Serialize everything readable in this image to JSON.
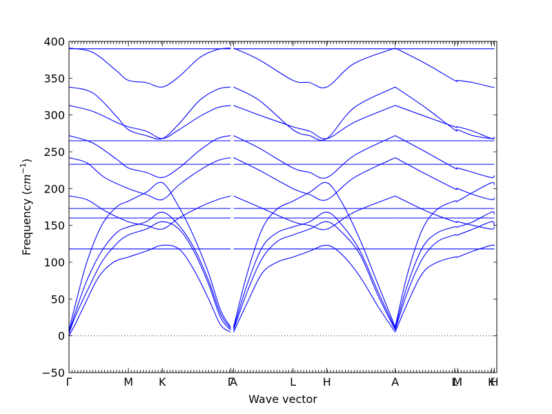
{
  "chart_data": {
    "type": "line",
    "xlabel": "Wave vector",
    "ylabel": "Frequency ($cm^{-1}$)",
    "ylabel_parts": {
      "text": "Frequency (",
      "math": "cm",
      "sup": "−1",
      "close": ")"
    },
    "ylim": [
      -50,
      400
    ],
    "xlim": [
      0,
      7.2
    ],
    "yticks": [
      -50,
      0,
      50,
      100,
      150,
      200,
      250,
      300,
      350,
      400
    ],
    "ytick_labels": [
      "−50",
      "0",
      "50",
      "100",
      "150",
      "200",
      "250",
      "300",
      "350",
      "400"
    ],
    "xticks": [
      {
        "x": 0.0,
        "label": "Γ"
      },
      {
        "x": 1.0,
        "label": "M"
      },
      {
        "x": 1.57,
        "label": "K"
      },
      {
        "x": 2.72,
        "label": "Γ"
      },
      {
        "x": 2.77,
        "label": "A"
      },
      {
        "x": 3.77,
        "label": "L"
      },
      {
        "x": 4.34,
        "label": "H"
      },
      {
        "x": 5.49,
        "label": "A"
      },
      {
        "x": 6.49,
        "label": "L"
      },
      {
        "x": 6.54,
        "label": "M"
      },
      {
        "x": 7.11,
        "label": "K"
      },
      {
        "x": 7.16,
        "label": "H"
      }
    ],
    "zero_line": true,
    "grid": false,
    "color": "#0000ff",
    "series": [
      {
        "x": [
          0,
          0.1,
          0.25,
          0.5,
          0.75,
          1.0,
          1.3,
          1.57,
          1.85,
          2.1,
          2.35,
          2.55,
          2.72
        ],
        "y": [
          0,
          15,
          40,
          80,
          100,
          107,
          115,
          123,
          118,
          90,
          50,
          15,
          5
        ]
      },
      {
        "x": [
          0,
          0.1,
          0.3,
          0.55,
          0.8,
          1.0,
          1.3,
          1.57,
          1.85,
          2.1,
          2.35,
          2.55,
          2.72
        ],
        "y": [
          3,
          25,
          60,
          100,
          125,
          137,
          145,
          155,
          145,
          115,
          70,
          25,
          8
        ]
      },
      {
        "x": [
          0,
          0.1,
          0.3,
          0.55,
          0.8,
          1.0,
          1.3,
          1.57,
          1.85,
          2.1,
          2.35,
          2.55,
          2.72
        ],
        "y": [
          5,
          30,
          75,
          115,
          140,
          148,
          155,
          168,
          150,
          120,
          75,
          30,
          10
        ]
      },
      {
        "x": [
          0,
          0.1,
          0.3,
          0.55,
          0.8,
          1.0,
          1.3,
          1.57,
          1.85,
          2.1,
          2.35,
          2.55,
          2.72
        ],
        "y": [
          8,
          40,
          100,
          150,
          175,
          183,
          195,
          208,
          175,
          135,
          85,
          35,
          12
        ]
      },
      {
        "x": [
          0,
          0.3,
          0.6,
          1.0,
          1.3,
          1.57,
          1.85,
          2.2,
          2.5,
          2.72
        ],
        "y": [
          190,
          185,
          170,
          155,
          150,
          145,
          160,
          175,
          185,
          190
        ]
      },
      {
        "x": [
          0,
          0.3,
          0.6,
          1.0,
          1.3,
          1.57,
          1.85,
          2.2,
          2.5,
          2.72
        ],
        "y": [
          242,
          235,
          215,
          200,
          192,
          185,
          205,
          225,
          238,
          242
        ]
      },
      {
        "x": [
          0,
          0.4,
          0.8,
          1.0,
          1.3,
          1.57,
          1.85,
          2.2,
          2.5,
          2.72
        ],
        "y": [
          272,
          262,
          240,
          228,
          222,
          215,
          228,
          252,
          268,
          272
        ]
      },
      {
        "x": [
          0,
          0.4,
          0.8,
          1.0,
          1.3,
          1.57,
          1.85,
          2.2,
          2.5,
          2.72
        ],
        "y": [
          313,
          305,
          290,
          284,
          278,
          268,
          280,
          298,
          310,
          313
        ]
      },
      {
        "x": [
          0,
          0.4,
          0.8,
          1.0,
          1.3,
          1.57,
          1.85,
          2.2,
          2.5,
          2.72
        ],
        "y": [
          338,
          330,
          298,
          280,
          272,
          268,
          288,
          320,
          335,
          338
        ]
      },
      {
        "x": [
          0,
          0.4,
          0.8,
          1.0,
          1.3,
          1.57,
          1.85,
          2.2,
          2.5,
          2.72
        ],
        "y": [
          391,
          385,
          360,
          347,
          344,
          338,
          352,
          378,
          389,
          391
        ]
      },
      {
        "x": [
          0,
          2.72
        ],
        "y": [
          118,
          118
        ]
      },
      {
        "x": [
          0,
          2.72
        ],
        "y": [
          160,
          160
        ]
      },
      {
        "x": [
          0,
          2.72
        ],
        "y": [
          173,
          173
        ]
      },
      {
        "x": [
          0,
          2.72
        ],
        "y": [
          233,
          233
        ]
      },
      {
        "x": [
          0,
          2.72
        ],
        "y": [
          265,
          265
        ]
      },
      {
        "x": [
          0,
          2.72
        ],
        "y": [
          390,
          390
        ]
      },
      {
        "x": [
          2.77,
          3.0,
          3.25,
          3.5,
          3.77,
          4.05,
          4.34,
          4.6,
          4.9,
          5.2,
          5.49
        ],
        "y": [
          5,
          45,
          85,
          100,
          107,
          115,
          123,
          110,
          80,
          40,
          5
        ]
      },
      {
        "x": [
          2.77,
          3.0,
          3.25,
          3.5,
          3.77,
          4.05,
          4.34,
          4.6,
          4.9,
          5.2,
          5.49
        ],
        "y": [
          8,
          60,
          105,
          128,
          137,
          145,
          155,
          140,
          110,
          55,
          8
        ]
      },
      {
        "x": [
          2.77,
          3.0,
          3.25,
          3.5,
          3.77,
          4.05,
          4.34,
          4.6,
          4.9,
          5.2,
          5.49
        ],
        "y": [
          10,
          70,
          120,
          140,
          148,
          155,
          168,
          150,
          115,
          60,
          10
        ]
      },
      {
        "x": [
          2.77,
          3.0,
          3.25,
          3.5,
          3.77,
          4.05,
          4.34,
          4.6,
          4.9,
          5.2,
          5.49
        ],
        "y": [
          12,
          85,
          145,
          172,
          183,
          195,
          208,
          180,
          130,
          70,
          12
        ]
      },
      {
        "x": [
          2.77,
          3.2,
          3.77,
          4.05,
          4.34,
          4.8,
          5.49
        ],
        "y": [
          190,
          175,
          155,
          150,
          145,
          168,
          190
        ]
      },
      {
        "x": [
          2.77,
          3.2,
          3.77,
          4.05,
          4.34,
          4.8,
          5.49
        ],
        "y": [
          242,
          225,
          200,
          192,
          185,
          215,
          242
        ]
      },
      {
        "x": [
          2.77,
          3.2,
          3.77,
          4.05,
          4.34,
          4.8,
          5.49
        ],
        "y": [
          272,
          255,
          228,
          222,
          215,
          245,
          272
        ]
      },
      {
        "x": [
          2.77,
          3.2,
          3.77,
          4.05,
          4.34,
          4.8,
          5.49
        ],
        "y": [
          313,
          300,
          284,
          278,
          268,
          290,
          313
        ]
      },
      {
        "x": [
          2.77,
          3.2,
          3.77,
          4.05,
          4.34,
          4.8,
          5.49
        ],
        "y": [
          338,
          320,
          280,
          272,
          268,
          310,
          338
        ]
      },
      {
        "x": [
          2.77,
          3.2,
          3.77,
          4.05,
          4.34,
          4.8,
          5.49
        ],
        "y": [
          391,
          375,
          347,
          344,
          338,
          370,
          391
        ]
      },
      {
        "x": [
          2.77,
          5.49
        ],
        "y": [
          118,
          118
        ]
      },
      {
        "x": [
          2.77,
          5.49
        ],
        "y": [
          160,
          160
        ]
      },
      {
        "x": [
          2.77,
          5.49
        ],
        "y": [
          173,
          173
        ]
      },
      {
        "x": [
          2.77,
          5.49
        ],
        "y": [
          233,
          233
        ]
      },
      {
        "x": [
          2.77,
          5.49
        ],
        "y": [
          265,
          265
        ]
      },
      {
        "x": [
          2.77,
          5.49
        ],
        "y": [
          390,
          390
        ]
      },
      {
        "x": [
          5.49,
          5.7,
          5.95,
          6.2,
          6.49,
          6.54,
          6.8,
          7.11,
          7.16
        ],
        "y": [
          5,
          45,
          85,
          100,
          107,
          107,
          115,
          123,
          122
        ]
      },
      {
        "x": [
          5.49,
          5.7,
          5.95,
          6.2,
          6.49,
          6.54,
          6.8,
          7.11,
          7.16
        ],
        "y": [
          8,
          60,
          105,
          128,
          137,
          137,
          145,
          155,
          150
        ]
      },
      {
        "x": [
          5.49,
          5.7,
          5.95,
          6.2,
          6.49,
          6.54,
          6.8,
          7.11,
          7.16
        ],
        "y": [
          10,
          70,
          120,
          140,
          148,
          148,
          155,
          168,
          165
        ]
      },
      {
        "x": [
          5.49,
          5.7,
          5.95,
          6.2,
          6.49,
          6.54,
          6.8,
          7.11,
          7.16
        ],
        "y": [
          12,
          85,
          145,
          172,
          183,
          183,
          195,
          208,
          205
        ]
      },
      {
        "x": [
          5.49,
          6.0,
          6.49,
          6.54,
          6.8,
          7.11,
          7.16
        ],
        "y": [
          190,
          170,
          155,
          155,
          150,
          145,
          148
        ]
      },
      {
        "x": [
          5.49,
          6.0,
          6.49,
          6.54,
          6.8,
          7.11,
          7.16
        ],
        "y": [
          242,
          220,
          200,
          200,
          192,
          185,
          188
        ]
      },
      {
        "x": [
          5.49,
          6.0,
          6.49,
          6.54,
          6.8,
          7.11,
          7.16
        ],
        "y": [
          272,
          250,
          228,
          228,
          222,
          215,
          218
        ]
      },
      {
        "x": [
          5.49,
          6.0,
          6.49,
          6.54,
          6.8,
          7.11,
          7.16
        ],
        "y": [
          313,
          298,
          284,
          284,
          278,
          268,
          270
        ]
      },
      {
        "x": [
          5.49,
          6.0,
          6.49,
          6.54,
          6.8,
          7.11,
          7.16
        ],
        "y": [
          338,
          310,
          280,
          280,
          272,
          268,
          270
        ]
      },
      {
        "x": [
          5.49,
          6.0,
          6.49,
          6.54,
          6.8,
          7.11,
          7.16
        ],
        "y": [
          391,
          370,
          347,
          347,
          344,
          338,
          338
        ]
      },
      {
        "x": [
          5.49,
          7.16
        ],
        "y": [
          118,
          118
        ]
      },
      {
        "x": [
          5.49,
          7.16
        ],
        "y": [
          160,
          160
        ]
      },
      {
        "x": [
          5.49,
          7.16
        ],
        "y": [
          173,
          173
        ]
      },
      {
        "x": [
          5.49,
          7.16
        ],
        "y": [
          233,
          233
        ]
      },
      {
        "x": [
          5.49,
          7.16
        ],
        "y": [
          265,
          265
        ]
      },
      {
        "x": [
          5.49,
          7.16
        ],
        "y": [
          390,
          390
        ]
      }
    ]
  }
}
